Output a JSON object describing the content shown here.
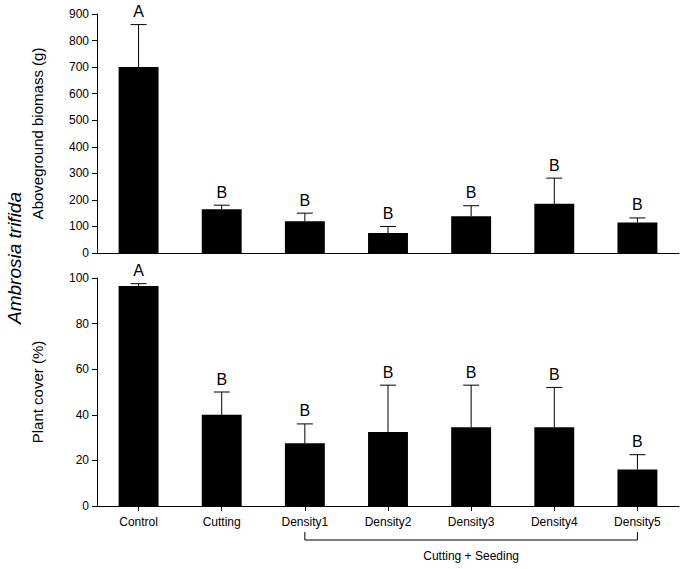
{
  "side_label": "Ambrosia trifida",
  "group_label": {
    "text": "Cutting + Seeding",
    "from": "Density1",
    "to": "Density5"
  },
  "chart_data": [
    {
      "type": "bar",
      "y_label": "Aboveground biomass (g)",
      "categories": [
        "Control",
        "Cutting",
        "Density1",
        "Density2",
        "Density3",
        "Density4",
        "Density5"
      ],
      "values": [
        700,
        165,
        120,
        75,
        138,
        185,
        115
      ],
      "errors": [
        160,
        15,
        30,
        25,
        40,
        97,
        17
      ],
      "annotations": [
        "A",
        "B",
        "B",
        "B",
        "B",
        "B",
        "B"
      ],
      "color": "#000000",
      "ylim": [
        0,
        900
      ],
      "yticks": [
        0,
        100,
        200,
        300,
        400,
        500,
        600,
        700,
        800,
        900
      ],
      "grid": false,
      "tick_labels": "y"
    },
    {
      "type": "bar",
      "y_label": "Plant cover (%)",
      "categories": [
        "Control",
        "Cutting",
        "Density1",
        "Density2",
        "Density3",
        "Density4",
        "Density5"
      ],
      "values": [
        96.5,
        40,
        27.5,
        32.5,
        34.5,
        34.5,
        16
      ],
      "errors": [
        1,
        10,
        8.5,
        20.5,
        18.5,
        17.5,
        6.5
      ],
      "annotations": [
        "A",
        "B",
        "B",
        "B",
        "B",
        "B",
        "B"
      ],
      "color": "#000000",
      "ylim": [
        0,
        100
      ],
      "yticks": [
        0,
        20,
        40,
        60,
        80,
        100
      ],
      "grid": false,
      "tick_labels": true
    }
  ]
}
